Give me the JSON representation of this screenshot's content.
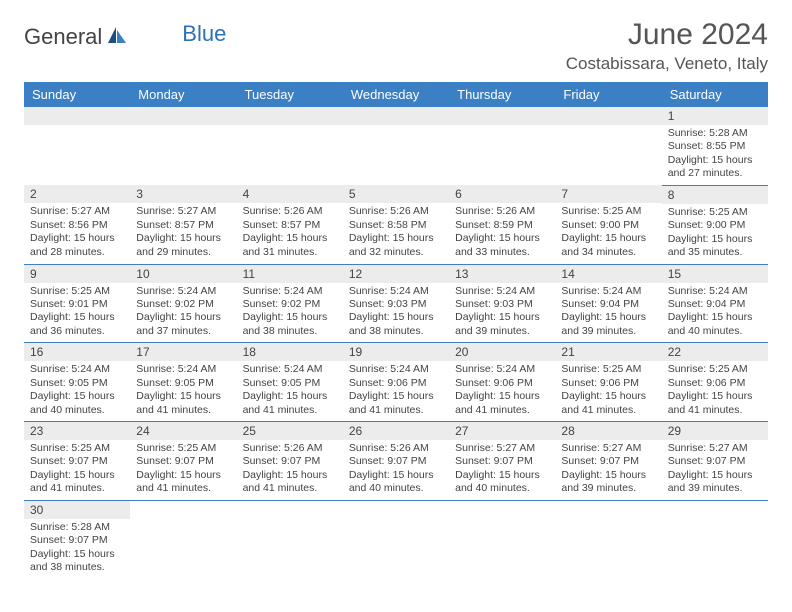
{
  "logo": {
    "part1": "General",
    "part2": "Blue"
  },
  "title": "June 2024",
  "location": "Costabissara, Veneto, Italy",
  "colors": {
    "header_bg": "#3b7fc4",
    "header_text": "#ffffff",
    "daynum_bg": "#ececec",
    "cell_border": "#3b7fc4",
    "text": "#444444",
    "logo_blue": "#2d72b8"
  },
  "weekdays": [
    "Sunday",
    "Monday",
    "Tuesday",
    "Wednesday",
    "Thursday",
    "Friday",
    "Saturday"
  ],
  "days": {
    "1": {
      "sunrise": "5:28 AM",
      "sunset": "8:55 PM",
      "daylight": "15 hours and 27 minutes."
    },
    "2": {
      "sunrise": "5:27 AM",
      "sunset": "8:56 PM",
      "daylight": "15 hours and 28 minutes."
    },
    "3": {
      "sunrise": "5:27 AM",
      "sunset": "8:57 PM",
      "daylight": "15 hours and 29 minutes."
    },
    "4": {
      "sunrise": "5:26 AM",
      "sunset": "8:57 PM",
      "daylight": "15 hours and 31 minutes."
    },
    "5": {
      "sunrise": "5:26 AM",
      "sunset": "8:58 PM",
      "daylight": "15 hours and 32 minutes."
    },
    "6": {
      "sunrise": "5:26 AM",
      "sunset": "8:59 PM",
      "daylight": "15 hours and 33 minutes."
    },
    "7": {
      "sunrise": "5:25 AM",
      "sunset": "9:00 PM",
      "daylight": "15 hours and 34 minutes."
    },
    "8": {
      "sunrise": "5:25 AM",
      "sunset": "9:00 PM",
      "daylight": "15 hours and 35 minutes."
    },
    "9": {
      "sunrise": "5:25 AM",
      "sunset": "9:01 PM",
      "daylight": "15 hours and 36 minutes."
    },
    "10": {
      "sunrise": "5:24 AM",
      "sunset": "9:02 PM",
      "daylight": "15 hours and 37 minutes."
    },
    "11": {
      "sunrise": "5:24 AM",
      "sunset": "9:02 PM",
      "daylight": "15 hours and 38 minutes."
    },
    "12": {
      "sunrise": "5:24 AM",
      "sunset": "9:03 PM",
      "daylight": "15 hours and 38 minutes."
    },
    "13": {
      "sunrise": "5:24 AM",
      "sunset": "9:03 PM",
      "daylight": "15 hours and 39 minutes."
    },
    "14": {
      "sunrise": "5:24 AM",
      "sunset": "9:04 PM",
      "daylight": "15 hours and 39 minutes."
    },
    "15": {
      "sunrise": "5:24 AM",
      "sunset": "9:04 PM",
      "daylight": "15 hours and 40 minutes."
    },
    "16": {
      "sunrise": "5:24 AM",
      "sunset": "9:05 PM",
      "daylight": "15 hours and 40 minutes."
    },
    "17": {
      "sunrise": "5:24 AM",
      "sunset": "9:05 PM",
      "daylight": "15 hours and 41 minutes."
    },
    "18": {
      "sunrise": "5:24 AM",
      "sunset": "9:05 PM",
      "daylight": "15 hours and 41 minutes."
    },
    "19": {
      "sunrise": "5:24 AM",
      "sunset": "9:06 PM",
      "daylight": "15 hours and 41 minutes."
    },
    "20": {
      "sunrise": "5:24 AM",
      "sunset": "9:06 PM",
      "daylight": "15 hours and 41 minutes."
    },
    "21": {
      "sunrise": "5:25 AM",
      "sunset": "9:06 PM",
      "daylight": "15 hours and 41 minutes."
    },
    "22": {
      "sunrise": "5:25 AM",
      "sunset": "9:06 PM",
      "daylight": "15 hours and 41 minutes."
    },
    "23": {
      "sunrise": "5:25 AM",
      "sunset": "9:07 PM",
      "daylight": "15 hours and 41 minutes."
    },
    "24": {
      "sunrise": "5:25 AM",
      "sunset": "9:07 PM",
      "daylight": "15 hours and 41 minutes."
    },
    "25": {
      "sunrise": "5:26 AM",
      "sunset": "9:07 PM",
      "daylight": "15 hours and 41 minutes."
    },
    "26": {
      "sunrise": "5:26 AM",
      "sunset": "9:07 PM",
      "daylight": "15 hours and 40 minutes."
    },
    "27": {
      "sunrise": "5:27 AM",
      "sunset": "9:07 PM",
      "daylight": "15 hours and 40 minutes."
    },
    "28": {
      "sunrise": "5:27 AM",
      "sunset": "9:07 PM",
      "daylight": "15 hours and 39 minutes."
    },
    "29": {
      "sunrise": "5:27 AM",
      "sunset": "9:07 PM",
      "daylight": "15 hours and 39 minutes."
    },
    "30": {
      "sunrise": "5:28 AM",
      "sunset": "9:07 PM",
      "daylight": "15 hours and 38 minutes."
    }
  },
  "labels": {
    "sunrise": "Sunrise:",
    "sunset": "Sunset:",
    "daylight": "Daylight:"
  },
  "layout": {
    "first_day_column": 6,
    "num_days": 30
  }
}
